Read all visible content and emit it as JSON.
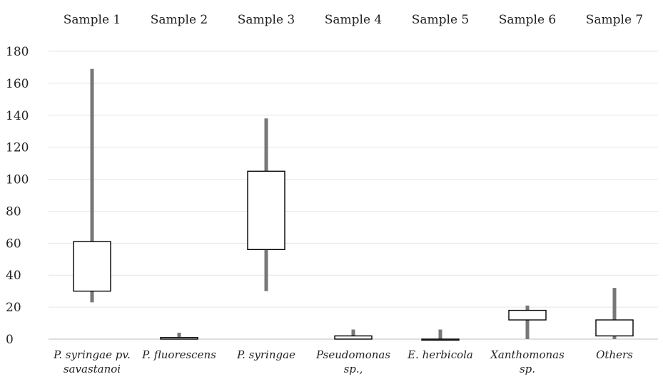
{
  "chart_data": {
    "type": "box",
    "top_labels": [
      "Sample 1",
      "Sample 2",
      "Sample 3",
      "Sample 4",
      "Sample 5",
      "Sample 6",
      "Sample 7"
    ],
    "categories": [
      [
        "P. syringae pv.",
        "savastanoi"
      ],
      [
        "P. fluorescens"
      ],
      [
        "P. syringae"
      ],
      [
        "Pseudomonas",
        "sp.,"
      ],
      [
        "E. herbicola"
      ],
      [
        "Xanthomonas",
        "sp."
      ],
      [
        "Others"
      ]
    ],
    "series": [
      {
        "min": 23,
        "q1": 30,
        "q3": 61,
        "max": 169
      },
      {
        "min": 0,
        "q1": 0,
        "q3": 1,
        "max": 4
      },
      {
        "min": 30,
        "q1": 56,
        "q3": 105,
        "max": 138
      },
      {
        "min": 0,
        "q1": 0,
        "q3": 2,
        "max": 6
      },
      {
        "min": 0,
        "q1": 0,
        "q3": 0,
        "max": 6
      },
      {
        "min": 0,
        "q1": 12,
        "q3": 18,
        "max": 21
      },
      {
        "min": 0,
        "q1": 2,
        "q3": 12,
        "max": 32
      }
    ],
    "yticks": [
      "0",
      "20",
      "40",
      "60",
      "80",
      "100",
      "120",
      "140",
      "160",
      "180"
    ],
    "ylim": [
      0,
      180
    ],
    "grid": true,
    "colors": {
      "whisker": "#777777",
      "box_fill": "#ffffff",
      "box_stroke": "#000000",
      "grid": "#e6e6e6"
    }
  }
}
